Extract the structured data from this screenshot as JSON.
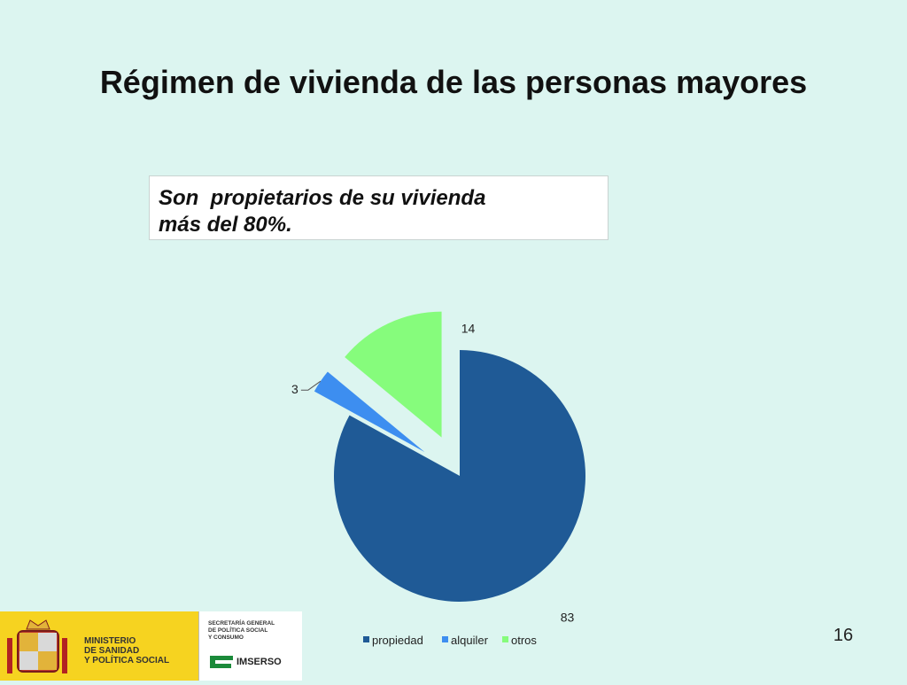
{
  "slide": {
    "title": "Régimen de vivienda de las personas mayores",
    "callout": {
      "line1": "Son  propietarios de su vivienda",
      "line2": "más del 80%."
    },
    "page_number": "16"
  },
  "chart_data": {
    "type": "pie",
    "categories": [
      "propiedad",
      "alquiler",
      "otros"
    ],
    "values": [
      83,
      3,
      14
    ],
    "colors": [
      "#1f5a96",
      "#3d8ef0",
      "#86fc7c"
    ],
    "exploded": [
      false,
      true,
      true
    ],
    "data_labels": [
      "83",
      "3",
      "14"
    ],
    "legend": {
      "position": "bottom",
      "entries": [
        "propiedad",
        "alquiler",
        "otros"
      ]
    }
  },
  "footer": {
    "ministry": "MINISTERIO\nDE SANIDAD\nY POLÍTICA SOCIAL",
    "secretaria": "SECRETARÍA GENERAL\nDE POLÍTICA SOCIAL\nY CONSUMO",
    "imserso": "IMSERSO",
    "colors": {
      "ministry_bg": "#f6d320",
      "imserso_green": "#1b8a3a"
    }
  }
}
